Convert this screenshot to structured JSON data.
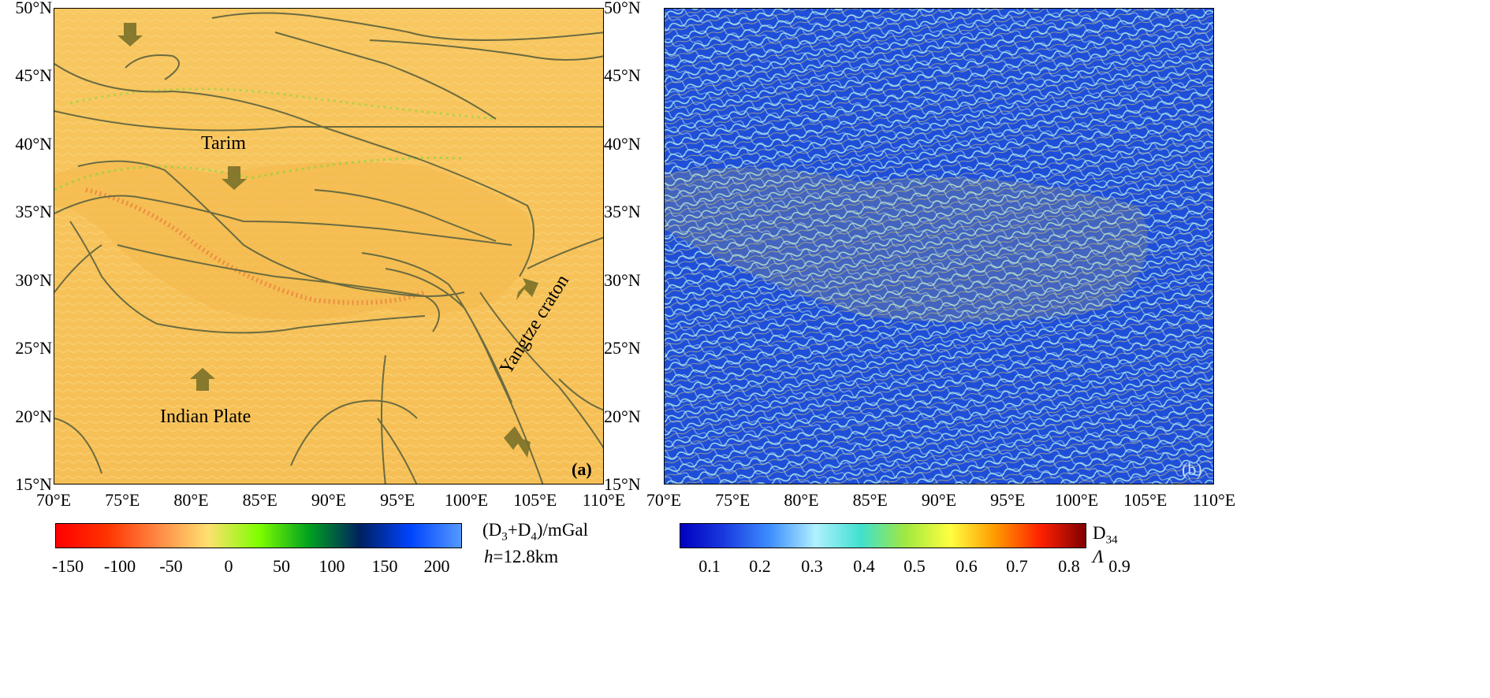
{
  "panel_a": {
    "tag": "(a)",
    "place_labels": {
      "tarim": "Tarim",
      "indian_plate": "Indian Plate",
      "yangtze": "Yangtze craton"
    },
    "y_ticks": [
      "50°N",
      "45°N",
      "40°N",
      "35°N",
      "30°N",
      "25°N",
      "20°N",
      "15°N"
    ],
    "x_ticks": [
      "70°E",
      "75°E",
      "80°E",
      "85°E",
      "90°E",
      "95°E",
      "100°E",
      "105°E",
      "110°E"
    ],
    "colorbar": {
      "label_main": "(D",
      "label_sub1": "3",
      "label_plus": "+D",
      "label_sub2": "4",
      "label_unit": ")/mGal",
      "height_italic": "h",
      "height_value": "=12.8km",
      "ticks": [
        "-150",
        "-100",
        "-50",
        "0",
        "50",
        "100",
        "150",
        "200"
      ],
      "colors": [
        "#ff0000",
        "#ff3300",
        "#ff8844",
        "#ffe070",
        "#7fff00",
        "#00a020",
        "#002060",
        "#0044ff",
        "#5599ff"
      ]
    },
    "background_color": "#f7c35a"
  },
  "panel_b": {
    "tag": "(b)",
    "y_ticks": [
      "50°N",
      "45°N",
      "40°N",
      "35°N",
      "30°N",
      "25°N",
      "20°N",
      "15°N"
    ],
    "x_ticks": [
      "70°E",
      "75°E",
      "80°E",
      "85°E",
      "90°E",
      "95°E",
      "100°E",
      "105°E",
      "110°E"
    ],
    "colorbar": {
      "label_main": "D",
      "label_sub": "34",
      "label_lambda": "Λ",
      "ticks": [
        "0.1",
        "0.2",
        "0.3",
        "0.4",
        "0.5",
        "0.6",
        "0.7",
        "0.8",
        "0.9"
      ],
      "colors": [
        "#0000c0",
        "#1a3ce0",
        "#3f8fff",
        "#b0f0ff",
        "#40e0d0",
        "#a0e840",
        "#ffff40",
        "#ff9900",
        "#ff2000",
        "#800000"
      ]
    },
    "background_color": "#1f4fd8"
  }
}
